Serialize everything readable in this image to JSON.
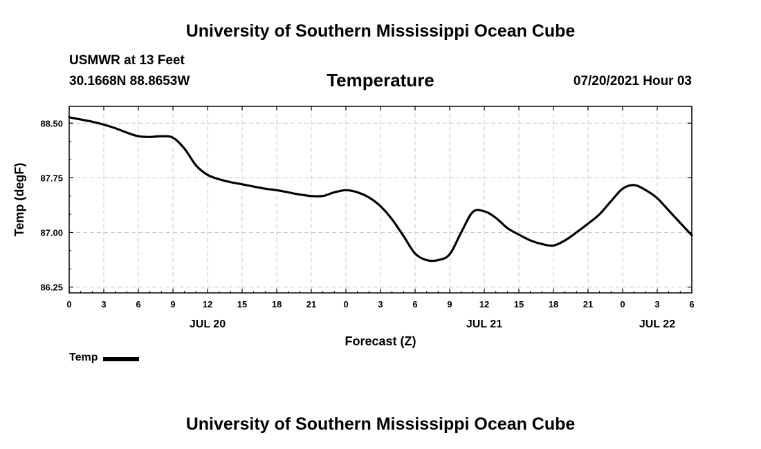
{
  "header": {
    "title": "University of Southern Mississippi Ocean Cube",
    "station": "USMWR at 13 Feet",
    "coords": "30.1668N  88.8653W",
    "datetime": "07/20/2021 Hour 03"
  },
  "footer": {
    "title": "University of Southern Mississippi Ocean Cube"
  },
  "chart_data": {
    "type": "line",
    "title": "Temperature",
    "xlabel": "Forecast (Z)",
    "ylabel": "Temp (degF)",
    "x_ticks": [
      "0",
      "3",
      "6",
      "9",
      "12",
      "15",
      "18",
      "21",
      "0",
      "3",
      "6",
      "9",
      "12",
      "15",
      "18",
      "21",
      "0",
      "3",
      "6"
    ],
    "x_tick_hours": [
      0,
      3,
      6,
      9,
      12,
      15,
      18,
      21,
      24,
      27,
      30,
      33,
      36,
      39,
      42,
      45,
      48,
      51,
      54
    ],
    "date_labels": [
      {
        "label": "JUL 20",
        "hour": 12
      },
      {
        "label": "JUL 21",
        "hour": 36
      },
      {
        "label": "JUL 22",
        "hour": 51
      }
    ],
    "y_ticks": [
      "86.25",
      "87.00",
      "87.75",
      "88.50"
    ],
    "y_tick_values": [
      86.25,
      87.0,
      87.75,
      88.5
    ],
    "ylim": [
      86.17,
      88.73
    ],
    "xlim": [
      0,
      54
    ],
    "grid": true,
    "legend": "bottom-left",
    "series": [
      {
        "name": "Temp",
        "color": "#000000",
        "x": [
          0,
          1,
          2,
          3,
          4,
          5,
          6,
          7,
          8,
          9,
          10,
          11,
          12,
          13,
          14,
          15,
          16,
          17,
          18,
          19,
          20,
          21,
          22,
          23,
          24,
          25,
          26,
          27,
          28,
          29,
          30,
          31,
          32,
          33,
          34,
          35,
          36,
          37,
          38,
          39,
          40,
          41,
          42,
          43,
          44,
          45,
          46,
          47,
          48,
          49,
          50,
          51,
          52,
          53,
          54
        ],
        "y": [
          88.58,
          88.55,
          88.52,
          88.48,
          88.43,
          88.37,
          88.32,
          88.31,
          88.32,
          88.3,
          88.15,
          87.92,
          87.79,
          87.73,
          87.69,
          87.66,
          87.63,
          87.6,
          87.58,
          87.55,
          87.52,
          87.5,
          87.5,
          87.55,
          87.58,
          87.55,
          87.48,
          87.36,
          87.18,
          86.95,
          86.71,
          86.62,
          86.62,
          86.7,
          87.0,
          87.28,
          87.29,
          87.2,
          87.06,
          86.97,
          86.89,
          86.84,
          86.82,
          86.89,
          87.0,
          87.12,
          87.25,
          87.43,
          87.6,
          87.65,
          87.58,
          87.47,
          87.3,
          87.13,
          86.96
        ]
      }
    ]
  }
}
